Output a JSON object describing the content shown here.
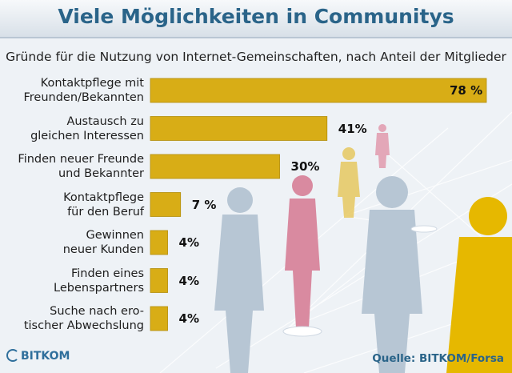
{
  "header": {
    "title": "Viele Möglichkeiten in Communitys"
  },
  "chart_data": {
    "type": "bar",
    "orientation": "horizontal",
    "title": "Viele Möglichkeiten in Communitys",
    "subtitle": "Gründe für die Nutzung von Internet-Gemeinschaften, nach Anteil der Mitglieder",
    "unit": "%",
    "categories": [
      "Kontaktpflege mit\nFreunden/Bekannten",
      "Austausch zu\ngleichen Interessen",
      "Finden neuer Freunde\nund Bekannter",
      "Kontaktpflege\nfür den Beruf",
      "Gewinnen\nneuer Kunden",
      "Finden eines\nLebenspartners",
      "Suche nach ero-\ntischer Abwechslung"
    ],
    "values": [
      78,
      41,
      30,
      7,
      4,
      4,
      4
    ],
    "value_labels": [
      "78 %",
      "41%",
      "30%",
      "7 %",
      "4%",
      "4%",
      "4%"
    ],
    "bar_color": "#d8ad16",
    "xlim": [
      0,
      78
    ],
    "grid": false,
    "legend": "none"
  },
  "footer": {
    "logo_text": "BITKOM",
    "source": "Quelle: BITKOM/Forsa"
  },
  "colors": {
    "title": "#2a6489",
    "bar": "#d8ad16",
    "silhouette_grey": "#b7c6d4",
    "silhouette_pink": "#d98aa0",
    "silhouette_yellow": "#e6b800"
  }
}
